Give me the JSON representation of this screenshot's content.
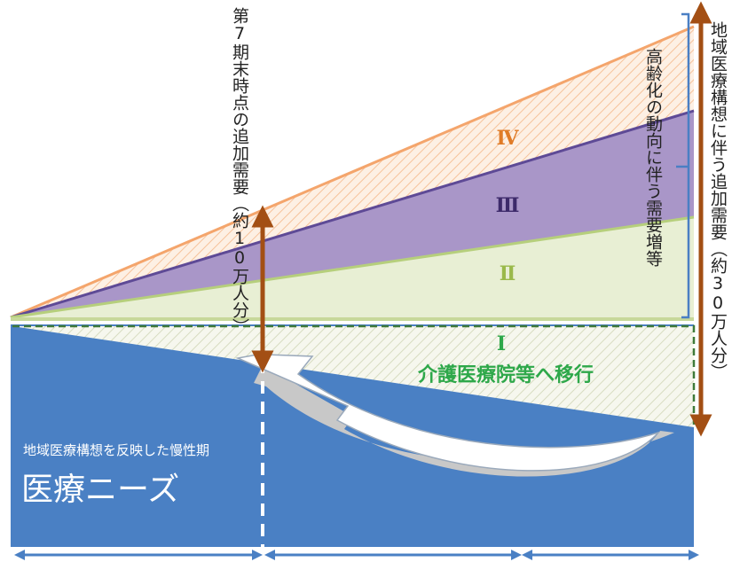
{
  "labels": {
    "seventh_period_demand": "第7期末時点の追加需要（約10万人分）",
    "aging_increase": "高齢化の動向に伴う需要増等",
    "regional_additional_demand": "地域医療構想に伴う追加需要（約30万人分）",
    "zone_4": "Ⅳ",
    "zone_3": "Ⅲ",
    "zone_2": "Ⅱ",
    "zone_1": "Ⅰ",
    "transfer": "介護医療院等へ移行",
    "chronic_subtitle": "地域医療構想を反映した慢性期",
    "chronic_main": "医療ニーズ"
  },
  "colors": {
    "zone_4_fill": "#fbe3cf",
    "zone_4_line": "#f4a56c",
    "zone_3_fill": "#a996c8",
    "zone_3_line": "#5e4a96",
    "zone_2_fill": "#e8efd4",
    "zone_2_line": "#b6cf7c",
    "zone_1_border": "#3f7a3a",
    "medical_blue": "#4a80c4",
    "arrow_brown": "#a34f14",
    "bracket_blue": "#4a7fc4",
    "zone_4_text": "#e07b27",
    "zone_3_text": "#3d2a6a",
    "zone_2_text": "#9ab94a",
    "zone_1_text": "#2ea84a"
  }
}
